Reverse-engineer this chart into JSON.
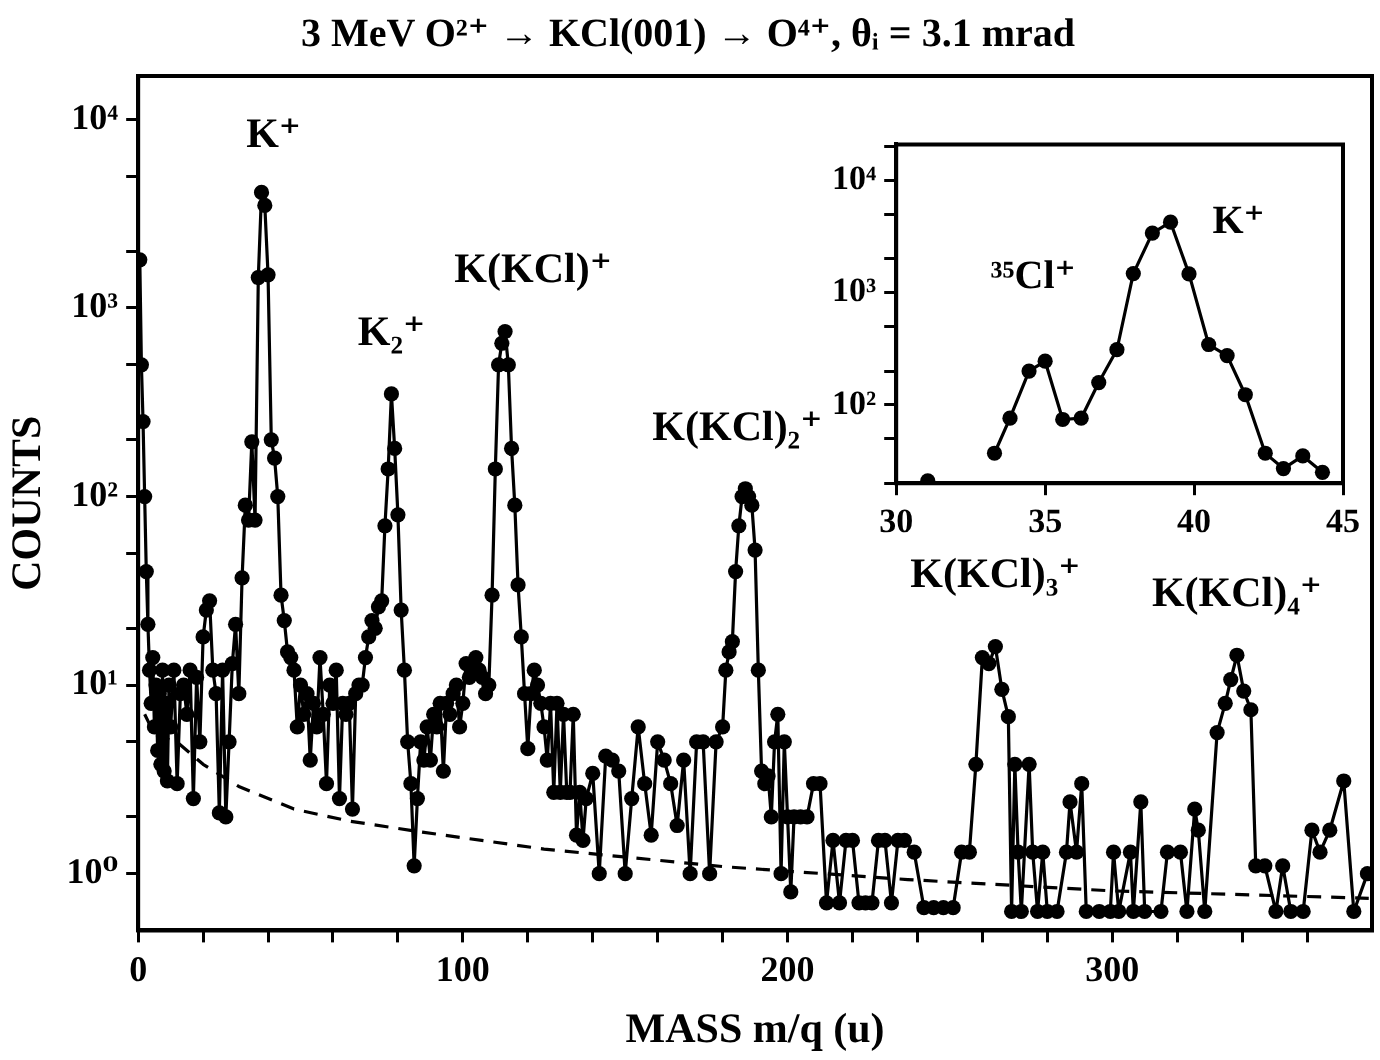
{
  "chart_data": [
    {
      "type": "line",
      "title": "3 MeV O²⁺ → KCl(001) → O⁴⁺, θᵢ = 3.1 mrad",
      "xlabel": "MASS m/q (u)",
      "ylabel": "COUNTS",
      "log": "y",
      "xlim": [
        0,
        380
      ],
      "xticks": [
        0,
        {
          "value": 20,
          "label": null
        },
        {
          "value": 40,
          "label": null
        },
        {
          "value": 60,
          "label": null
        },
        {
          "value": 80,
          "label": null
        },
        100,
        {
          "value": 120,
          "label": null
        },
        {
          "value": 140,
          "label": null
        },
        {
          "value": 160,
          "label": null
        },
        {
          "value": 180,
          "label": null
        },
        200,
        {
          "value": 220,
          "label": null
        },
        {
          "value": 240,
          "label": null
        },
        {
          "value": 260,
          "label": null
        },
        {
          "value": 280,
          "label": null
        },
        300,
        {
          "value": 320,
          "label": null
        },
        {
          "value": 340,
          "label": null
        },
        {
          "value": 360,
          "label": null
        }
      ],
      "ylim": [
        0.5,
        17000
      ],
      "yticks": [
        {
          "value": 1,
          "label": "10⁰"
        },
        {
          "value": 2,
          "label": null
        },
        {
          "value": 5,
          "label": null
        },
        {
          "value": 10,
          "label": "10¹"
        },
        {
          "value": 20,
          "label": null
        },
        {
          "value": 50,
          "label": null
        },
        {
          "value": 100,
          "label": "10²"
        },
        {
          "value": 200,
          "label": null
        },
        {
          "value": 500,
          "label": null
        },
        {
          "value": 1000,
          "label": "10³"
        },
        {
          "value": 2000,
          "label": null
        },
        {
          "value": 5000,
          "label": null
        },
        {
          "value": 10000,
          "label": "10⁴"
        }
      ],
      "series": [
        {
          "color": "#000000",
          "marker": "circle",
          "x": [
            0.5,
            1,
            1.5,
            2,
            2.5,
            3,
            3.5,
            4,
            4.5,
            5,
            5.5,
            6,
            6.5,
            7,
            7.5,
            8,
            8.5,
            9,
            9.5,
            10,
            11,
            12,
            13,
            14,
            15,
            16,
            17,
            18,
            19,
            20,
            21,
            22,
            23,
            24,
            25,
            26,
            27,
            28,
            29,
            30,
            31,
            32,
            33,
            34,
            35,
            36,
            37,
            38,
            39,
            40,
            41,
            42,
            43,
            44,
            45,
            46,
            47,
            48,
            49,
            50,
            51,
            52,
            53,
            54,
            55,
            56,
            57,
            58,
            59,
            60,
            61,
            62,
            63,
            64,
            65,
            66,
            67,
            68,
            69,
            70,
            71,
            72,
            73,
            74,
            75,
            76,
            77,
            78,
            79,
            80,
            81,
            82,
            83,
            84,
            85,
            86,
            87,
            88,
            89,
            90,
            91,
            92,
            93,
            94,
            95,
            96,
            97,
            98,
            99,
            100,
            101,
            102,
            103,
            104,
            105,
            106,
            107,
            108,
            109,
            110,
            111,
            112,
            113,
            114,
            115,
            116,
            117,
            118,
            119,
            120,
            121,
            122,
            123,
            124,
            125,
            126,
            127,
            128,
            129,
            130,
            131,
            132,
            133,
            134,
            135,
            136,
            137,
            138,
            140,
            142,
            144,
            146,
            148,
            150,
            152,
            154,
            156,
            158,
            160,
            162,
            164,
            166,
            168,
            170,
            172,
            174,
            176,
            178,
            180,
            181,
            182,
            183,
            184,
            185,
            186,
            187,
            188,
            189,
            190,
            191,
            192,
            193,
            194,
            195,
            196,
            197,
            198,
            199,
            200,
            201,
            202,
            204,
            206,
            208,
            210,
            212,
            214,
            216,
            218,
            220,
            222,
            224,
            226,
            228,
            230,
            232,
            234,
            236,
            239,
            242,
            245,
            248,
            251,
            253.6,
            256,
            258,
            260,
            262,
            264,
            266,
            268,
            269,
            270,
            271,
            272,
            274.4,
            275.5,
            277,
            278.6,
            280,
            283,
            285.9,
            287,
            289,
            290.6,
            292,
            296,
            299.4,
            300.4,
            302,
            305.6,
            306.5,
            308.8,
            310,
            315,
            317,
            321,
            323,
            325.4,
            326.5,
            328.5,
            332.3,
            334.8,
            336.5,
            338.4,
            340.5,
            342.7,
            344.2,
            347,
            350.4,
            352.5,
            355,
            358.8,
            361.5,
            364,
            367,
            371.3,
            374.4,
            378.6
          ],
          "values": [
            1800,
            500,
            250,
            100,
            40,
            21,
            12,
            8,
            14,
            6,
            10,
            4.5,
            9,
            3.8,
            12,
            3.5,
            8,
            3.1,
            10,
            6,
            12,
            3,
            9,
            10,
            7,
            12,
            2.5,
            11,
            5,
            18,
            25,
            28,
            12,
            9,
            2.1,
            12,
            2,
            5,
            13,
            21,
            9,
            37,
            90,
            75,
            195,
            75,
            1450,
            4100,
            3500,
            1500,
            200,
            160,
            100,
            30,
            22,
            15,
            14,
            12,
            6,
            10,
            7,
            9,
            4,
            8,
            6,
            14,
            7,
            3,
            10,
            8,
            12,
            2.5,
            8,
            7,
            8,
            2.2,
            9,
            10,
            10,
            14,
            18,
            22,
            20,
            26,
            28,
            70,
            140,
            350,
            180,
            80,
            25,
            12,
            5,
            3,
            1.1,
            2.5,
            5,
            4,
            6,
            4,
            7,
            6,
            8,
            3.5,
            8,
            7,
            9,
            10,
            6,
            8,
            13,
            11,
            12,
            14,
            12,
            11,
            9,
            10,
            30,
            140,
            500,
            650,
            750,
            500,
            180,
            90,
            34,
            18,
            9,
            4.6,
            9,
            12,
            10,
            8,
            6,
            4,
            8,
            2.7,
            8,
            2.7,
            7,
            2.7,
            2.7,
            7,
            1.6,
            2.7,
            1.5,
            2.5,
            3.4,
            1,
            4.2,
            4,
            3.5,
            1,
            2.5,
            6,
            3,
            1.6,
            5,
            4,
            3,
            1.8,
            4,
            1,
            5,
            5,
            1,
            5,
            6,
            12,
            15,
            17,
            40,
            70,
            100,
            110,
            100,
            90,
            52,
            12,
            3.5,
            3,
            3.3,
            2,
            5,
            7,
            1,
            5,
            2,
            0.8,
            2,
            2,
            2,
            3,
            3,
            0.7,
            1.5,
            0.7,
            1.5,
            1.5,
            0.7,
            0.7,
            0.7,
            1.5,
            1.5,
            0.7,
            1.5,
            1.5,
            1.3,
            0.66,
            0.66,
            0.66,
            0.66,
            1.3,
            1.3,
            3.8,
            14,
            13,
            16,
            9.5,
            6.8,
            0.63,
            3.8,
            1.3,
            0.63,
            3.8,
            1.3,
            0.63,
            1.3,
            0.63,
            0.63,
            1.3,
            2.4,
            1.3,
            3,
            0.63,
            0.63,
            0.63,
            1.3,
            0.63,
            1.3,
            0.63,
            2.4,
            0.63,
            0.63,
            1.3,
            1.3,
            0.63,
            2.2,
            1.7,
            0.63,
            5.6,
            8,
            10.7,
            14.4,
            9.3,
            7.4,
            1.1,
            1.1,
            0.63,
            1.1,
            0.63,
            0.63,
            1.7,
            1.3,
            1.7,
            3.1,
            0.63,
            1
          ]
        },
        {
          "color": "#000000",
          "marker": "none",
          "line_style": "dashed",
          "x": [
            2,
            5,
            12.5,
            20,
            31,
            48,
            65,
            87.5,
            125,
            180,
            237,
            300,
            379
          ],
          "values": [
            7,
            5.5,
            4.9,
            3.8,
            2.9,
            2.2,
            1.9,
            1.66,
            1.35,
            1.09,
            0.93,
            0.81,
            0.74
          ]
        }
      ],
      "annotations": [
        {
          "text": "K⁺",
          "x": 38,
          "y": 4100
        },
        {
          "text": "K₂⁺",
          "x": 78,
          "y": 350
        },
        {
          "text": "K(KCl)⁺",
          "x": 113,
          "y": 750
        },
        {
          "text": "K(KCl)₂⁺",
          "x": 187,
          "y": 110
        },
        {
          "text": "K(KCl)₃⁺",
          "x": 264,
          "y": 16
        },
        {
          "text": "K(KCl)₄⁺",
          "x": 338.4,
          "y": 14.4
        }
      ]
    },
    {
      "type": "line",
      "log": "y",
      "xlim": [
        30,
        45
      ],
      "xticks": [
        30,
        35,
        40,
        45
      ],
      "ylim": [
        20,
        21000
      ],
      "yticks": [
        {
          "value": 20,
          "label": null
        },
        {
          "value": 50,
          "label": null
        },
        {
          "value": 100,
          "label": "10²"
        },
        {
          "value": 200,
          "label": null
        },
        {
          "value": 500,
          "label": null
        },
        {
          "value": 1000,
          "label": "10³"
        },
        {
          "value": 2000,
          "label": null
        },
        {
          "value": 5000,
          "label": null
        },
        {
          "value": 10000,
          "label": "10⁴"
        },
        {
          "value": 20000,
          "label": null
        }
      ],
      "series": [
        {
          "color": "#000000",
          "marker": "circle",
          "x": [
            31.06,
            32.2,
            33.3,
            33.82,
            34.46,
            35,
            35.59,
            36.21,
            36.8,
            37.41,
            37.96,
            38.6,
            39.21,
            39.83,
            40.49,
            41.11,
            41.72,
            42.39,
            43,
            43.65,
            44.31
          ],
          "values": [
            21,
            null,
            37,
            76,
            200,
            245,
            74,
            76,
            158,
            310,
            1480,
            3400,
            4250,
            1470,
            345,
            275,
            123,
            37,
            27,
            35,
            25
          ]
        }
      ],
      "annotations": [
        {
          "text": "K⁺",
          "x": 39.21,
          "y": 4250
        },
        {
          "text": "³⁵Cl⁺",
          "x": 35,
          "y": 245
        }
      ]
    }
  ]
}
